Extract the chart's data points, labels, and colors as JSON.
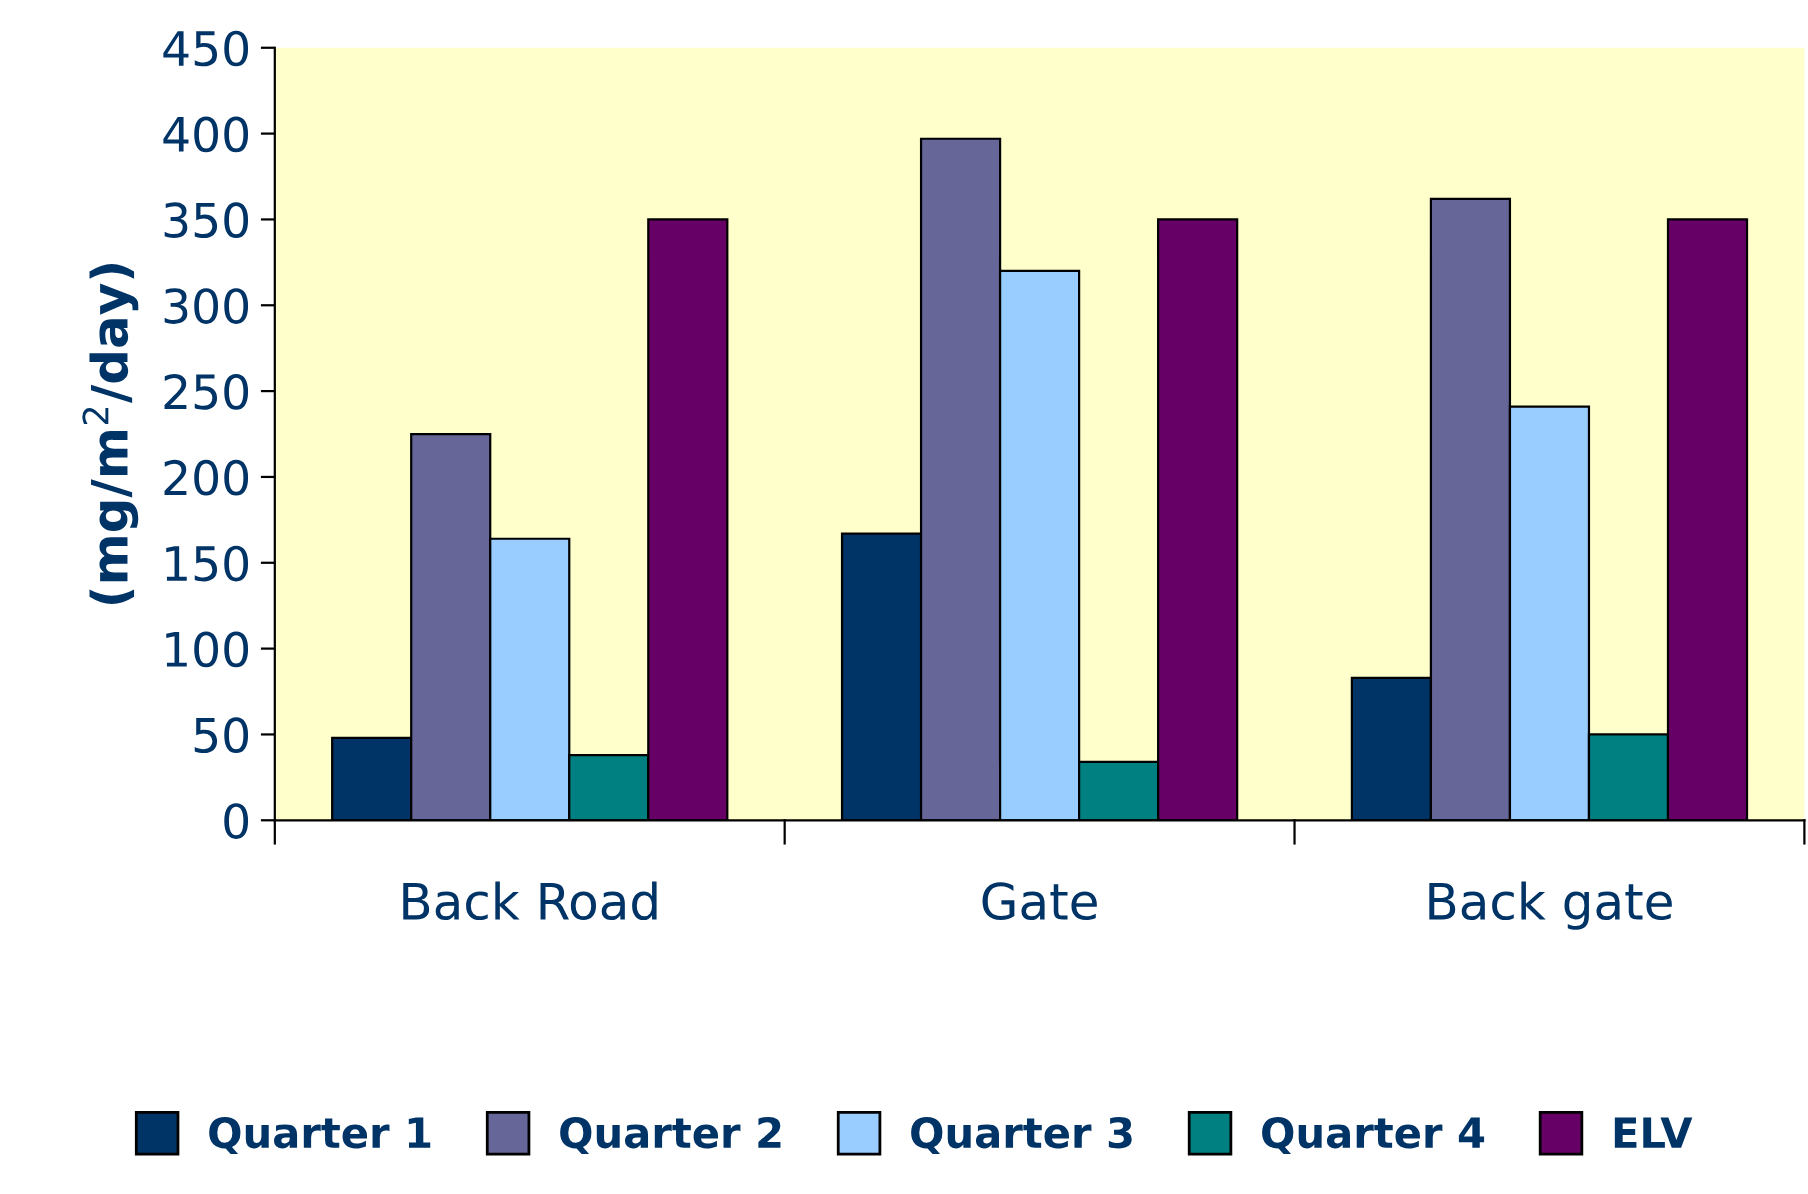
{
  "chart_data": {
    "type": "bar",
    "ylabel": "(mg/m$^{2}$/day)",
    "categories": [
      "Back Road",
      "Gate",
      "Back gate"
    ],
    "series": [
      {
        "name": "Quarter 1",
        "color": "#003366",
        "values": [
          48,
          167,
          83
        ]
      },
      {
        "name": "Quarter 2",
        "color": "#666699",
        "values": [
          225,
          397,
          362
        ]
      },
      {
        "name": "Quarter 3",
        "color": "#99ccff",
        "values": [
          164,
          320,
          241
        ]
      },
      {
        "name": "Quarter 4",
        "color": "#008080",
        "values": [
          38,
          34,
          50
        ]
      },
      {
        "name": "ELV",
        "color": "#660066",
        "values": [
          350,
          350,
          350
        ]
      }
    ],
    "ylim": [
      0,
      450
    ],
    "yticks": [
      0,
      50,
      100,
      150,
      200,
      250,
      300,
      350,
      400,
      450
    ],
    "grid": false,
    "legend": "bottom"
  }
}
